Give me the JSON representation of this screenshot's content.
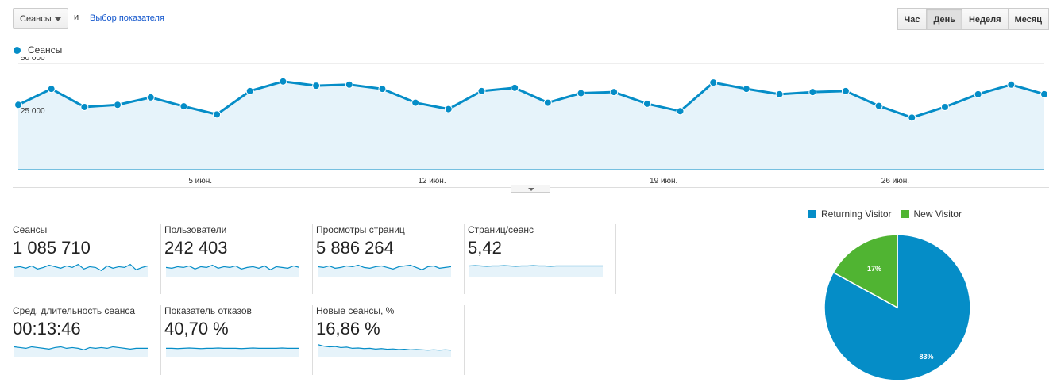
{
  "toolbar": {
    "metric_select": "Сеансы",
    "and_label": "и",
    "choose_metric": "Выбор показателя",
    "periods": [
      "Час",
      "День",
      "Неделя",
      "Месяц"
    ],
    "active_period": "День"
  },
  "chart_data": {
    "type": "area",
    "series": [
      {
        "name": "Сеансы",
        "color": "#058dc7",
        "values": [
          30500,
          38000,
          29500,
          30500,
          34000,
          29800,
          26000,
          37000,
          41500,
          39500,
          40000,
          38000,
          31500,
          28500,
          37000,
          38500,
          31500,
          36000,
          36500,
          31000,
          27500,
          41000,
          38000,
          35500,
          36500,
          37000,
          30000,
          24500,
          29500,
          35500,
          40000,
          35500
        ]
      }
    ],
    "x_labels": [
      {
        "label": "5 июн.",
        "index": 5.5
      },
      {
        "label": "12 июн.",
        "index": 12.5
      },
      {
        "label": "19 июн.",
        "index": 19.5
      },
      {
        "label": "26 июн.",
        "index": 26.5
      }
    ],
    "y_ticks": [
      {
        "value": 50000,
        "label": "50 000"
      },
      {
        "value": 25000,
        "label": "25 000"
      }
    ],
    "ylim": [
      0,
      50000
    ],
    "grid": true,
    "legend": "top-left"
  },
  "scorecards": [
    {
      "title": "Сеансы",
      "value": "1 085 710",
      "trend": [
        0.5,
        0.55,
        0.45,
        0.6,
        0.4,
        0.5,
        0.65,
        0.55,
        0.45,
        0.6,
        0.5,
        0.7,
        0.4,
        0.55,
        0.5,
        0.3,
        0.6,
        0.45,
        0.55,
        0.5,
        0.7,
        0.35,
        0.5,
        0.6
      ]
    },
    {
      "title": "Пользователи",
      "value": "242 403",
      "trend": [
        0.5,
        0.45,
        0.55,
        0.5,
        0.6,
        0.4,
        0.55,
        0.5,
        0.65,
        0.45,
        0.55,
        0.5,
        0.6,
        0.4,
        0.5,
        0.55,
        0.45,
        0.6,
        0.35,
        0.55,
        0.5,
        0.45,
        0.6,
        0.5
      ]
    },
    {
      "title": "Просмотры страниц",
      "value": "5 886 264",
      "trend": [
        0.55,
        0.5,
        0.6,
        0.45,
        0.5,
        0.6,
        0.55,
        0.65,
        0.5,
        0.45,
        0.55,
        0.6,
        0.5,
        0.4,
        0.55,
        0.6,
        0.65,
        0.5,
        0.35,
        0.55,
        0.6,
        0.45,
        0.5,
        0.55
      ]
    },
    {
      "title": "Страниц/сеанс",
      "value": "5,42",
      "trend": [
        0.6,
        0.62,
        0.6,
        0.58,
        0.6,
        0.6,
        0.62,
        0.6,
        0.58,
        0.6,
        0.6,
        0.62,
        0.6,
        0.6,
        0.58,
        0.6,
        0.6,
        0.6,
        0.6,
        0.6,
        0.6,
        0.6,
        0.6,
        0.6
      ]
    },
    {
      "title": "Сред. длительность сеанса",
      "value": "00:13:46",
      "trend": [
        0.6,
        0.55,
        0.5,
        0.6,
        0.55,
        0.5,
        0.45,
        0.55,
        0.6,
        0.5,
        0.55,
        0.5,
        0.4,
        0.55,
        0.5,
        0.55,
        0.5,
        0.6,
        0.55,
        0.5,
        0.45,
        0.5,
        0.5,
        0.5
      ]
    },
    {
      "title": "Показатель отказов",
      "value": "40,70 %",
      "trend": [
        0.5,
        0.5,
        0.48,
        0.5,
        0.52,
        0.5,
        0.48,
        0.5,
        0.5,
        0.52,
        0.5,
        0.5,
        0.5,
        0.48,
        0.5,
        0.52,
        0.5,
        0.5,
        0.5,
        0.5,
        0.52,
        0.5,
        0.5,
        0.5
      ]
    },
    {
      "title": "Новые сеансы, %",
      "value": "16,86 %",
      "trend": [
        0.75,
        0.65,
        0.6,
        0.62,
        0.55,
        0.58,
        0.5,
        0.52,
        0.48,
        0.5,
        0.45,
        0.48,
        0.44,
        0.46,
        0.42,
        0.44,
        0.4,
        0.42,
        0.4,
        0.38,
        0.4,
        0.38,
        0.4,
        0.38
      ]
    }
  ],
  "pie": {
    "legend": [
      {
        "label": "Returning Visitor",
        "color": "#058dc7"
      },
      {
        "label": "New Visitor",
        "color": "#50b432"
      }
    ],
    "slices": [
      {
        "label": "Returning Visitor",
        "value": 83,
        "text": "83%",
        "color": "#058dc7"
      },
      {
        "label": "New Visitor",
        "value": 17,
        "text": "17%",
        "color": "#50b432"
      }
    ]
  }
}
